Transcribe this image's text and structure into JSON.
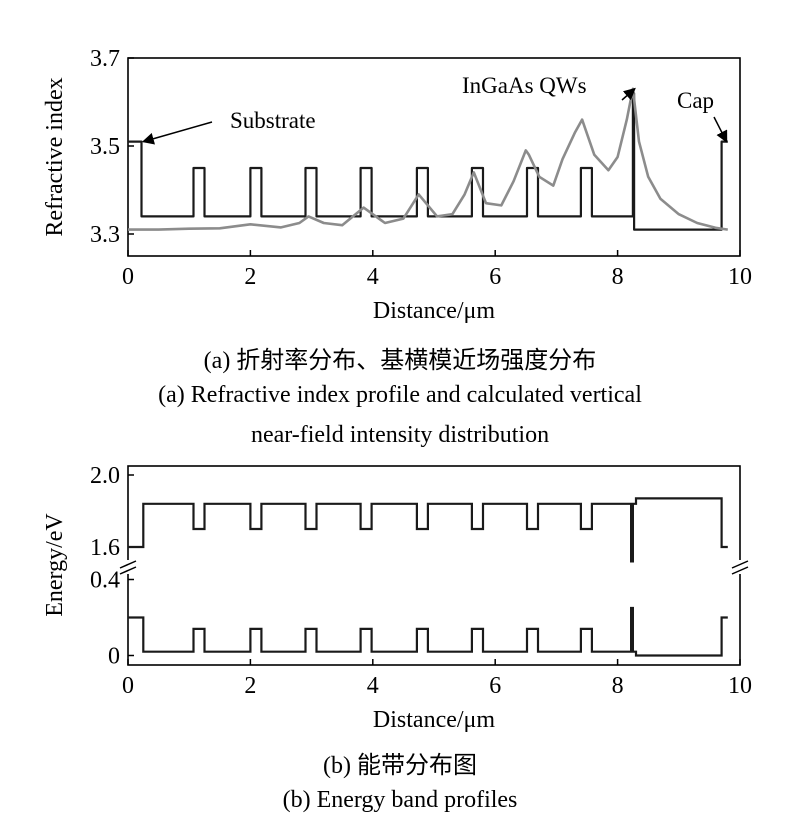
{
  "chart_data": [
    {
      "type": "line",
      "xlabel": "Distance/μm",
      "ylabel": "Refractive index",
      "xlim": [
        0,
        10
      ],
      "ylim": [
        3.25,
        3.7
      ],
      "x_ticks": [
        0,
        2,
        4,
        6,
        8,
        10
      ],
      "y_ticks": [
        3.3,
        3.5,
        3.7
      ],
      "grid": false,
      "caption_cn": "(a) 折射率分布、基横模近场强度分布",
      "caption_en": [
        "(a) Refractive index profile and calculated vertical",
        "near-field intensity distribution"
      ],
      "annotations": [
        {
          "text": "Substrate",
          "target": [
            0.25,
            3.51
          ]
        },
        {
          "text": "InGaAs QWs",
          "target": [
            8.28,
            3.63
          ]
        },
        {
          "text": "Cap",
          "target": [
            9.78,
            3.51
          ]
        }
      ],
      "series": [
        {
          "color": "#1a1a1a",
          "step": true,
          "x": [
            0,
            0.22,
            0.22,
            0.27,
            0.27,
            1.07,
            1.07,
            1.25,
            1.25,
            2.0,
            2.0,
            2.18,
            2.18,
            2.9,
            2.9,
            3.08,
            3.08,
            3.8,
            3.8,
            3.98,
            3.98,
            4.72,
            4.72,
            4.9,
            4.9,
            5.62,
            5.62,
            5.8,
            5.8,
            6.52,
            6.52,
            6.7,
            6.7,
            7.4,
            7.4,
            7.58,
            7.58,
            8.25,
            8.25,
            8.27,
            8.27,
            8.3,
            8.3,
            9.7,
            9.7,
            9.8
          ],
          "y": [
            3.51,
            3.51,
            3.34,
            3.34,
            3.34,
            3.34,
            3.45,
            3.45,
            3.34,
            3.34,
            3.45,
            3.45,
            3.34,
            3.34,
            3.45,
            3.45,
            3.34,
            3.34,
            3.45,
            3.45,
            3.34,
            3.34,
            3.45,
            3.45,
            3.34,
            3.34,
            3.45,
            3.45,
            3.34,
            3.34,
            3.45,
            3.45,
            3.34,
            3.34,
            3.45,
            3.45,
            3.34,
            3.34,
            3.62,
            3.62,
            3.31,
            3.31,
            3.31,
            3.31,
            3.51,
            3.51
          ]
        },
        {
          "color": "#8c8c8c",
          "step": false,
          "x": [
            0,
            0.5,
            1.0,
            1.5,
            2.0,
            2.5,
            2.8,
            2.95,
            3.2,
            3.5,
            3.85,
            4.2,
            4.5,
            4.75,
            5.05,
            5.3,
            5.5,
            5.65,
            5.85,
            6.1,
            6.3,
            6.5,
            6.55,
            6.72,
            6.95,
            7.1,
            7.3,
            7.42,
            7.62,
            7.85,
            8.0,
            8.15,
            8.25,
            8.35,
            8.5,
            8.7,
            9.0,
            9.3,
            9.6,
            9.8
          ],
          "y": [
            3.31,
            3.31,
            3.312,
            3.313,
            3.322,
            3.315,
            3.325,
            3.34,
            3.325,
            3.32,
            3.36,
            3.325,
            3.335,
            3.39,
            3.34,
            3.345,
            3.39,
            3.44,
            3.37,
            3.365,
            3.42,
            3.49,
            3.48,
            3.43,
            3.41,
            3.47,
            3.53,
            3.56,
            3.48,
            3.445,
            3.475,
            3.56,
            3.63,
            3.51,
            3.43,
            3.38,
            3.345,
            3.325,
            3.314,
            3.31
          ]
        }
      ]
    },
    {
      "type": "line",
      "xlabel": "Distance/μm",
      "ylabel": "Energy/eV",
      "xlim": [
        0,
        10
      ],
      "y_ticks": [
        0,
        0.4,
        1.6,
        2.0
      ],
      "broken_y_axis": true,
      "broken_ranges": [
        [
          -0.05,
          0.45
        ],
        [
          1.5,
          2.05
        ]
      ],
      "grid": false,
      "caption_cn": "(b) 能带分布图",
      "caption_en": "(b) Energy band profiles",
      "series": [
        {
          "color": "#1a1a1a",
          "step": true,
          "x": [
            0,
            0.25,
            0.25,
            1.07,
            1.07,
            1.25,
            1.25,
            2.0,
            2.0,
            2.18,
            2.18,
            2.9,
            2.9,
            3.08,
            3.08,
            3.8,
            3.8,
            3.98,
            3.98,
            4.72,
            4.72,
            4.9,
            4.9,
            5.62,
            5.62,
            5.8,
            5.8,
            6.52,
            6.52,
            6.7,
            6.7,
            7.4,
            7.4,
            7.58,
            7.58,
            8.22,
            8.22,
            8.25,
            8.25,
            8.3,
            8.3,
            9.7,
            9.7,
            9.8
          ],
          "y": [
            1.6,
            1.6,
            1.84,
            1.84,
            1.7,
            1.7,
            1.84,
            1.84,
            1.7,
            1.7,
            1.84,
            1.84,
            1.7,
            1.7,
            1.84,
            1.84,
            1.7,
            1.7,
            1.84,
            1.84,
            1.7,
            1.7,
            1.84,
            1.84,
            1.7,
            1.7,
            1.84,
            1.84,
            1.7,
            1.7,
            1.84,
            1.84,
            1.7,
            1.7,
            1.84,
            1.84,
            1.52,
            1.52,
            1.84,
            1.84,
            1.87,
            1.87,
            1.6,
            1.6
          ]
        },
        {
          "color": "#1a1a1a",
          "step": true,
          "x": [
            0,
            0.25,
            0.25,
            1.07,
            1.07,
            1.25,
            1.25,
            2.0,
            2.0,
            2.18,
            2.18,
            2.9,
            2.9,
            3.08,
            3.08,
            3.8,
            3.8,
            3.98,
            3.98,
            4.72,
            4.72,
            4.9,
            4.9,
            5.62,
            5.62,
            5.8,
            5.8,
            6.52,
            6.52,
            6.7,
            6.7,
            7.4,
            7.4,
            7.58,
            7.58,
            8.22,
            8.22,
            8.25,
            8.25,
            8.3,
            8.3,
            9.7,
            9.7,
            9.8
          ],
          "y": [
            0.2,
            0.2,
            0.02,
            0.02,
            0.14,
            0.14,
            0.02,
            0.02,
            0.14,
            0.14,
            0.02,
            0.02,
            0.14,
            0.14,
            0.02,
            0.02,
            0.14,
            0.14,
            0.02,
            0.02,
            0.14,
            0.14,
            0.02,
            0.02,
            0.14,
            0.14,
            0.02,
            0.02,
            0.14,
            0.14,
            0.02,
            0.02,
            0.14,
            0.14,
            0.02,
            0.02,
            0.25,
            0.25,
            0.02,
            0.02,
            0.0,
            0.0,
            0.2,
            0.2
          ]
        }
      ]
    }
  ]
}
